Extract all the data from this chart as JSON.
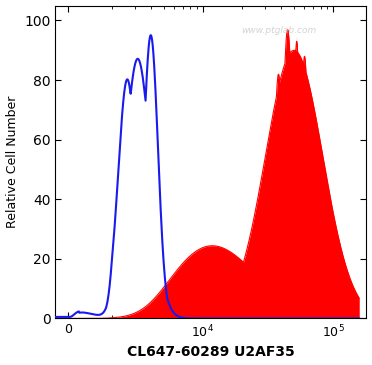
{
  "xlabel": "CL647-60289 U2AF35",
  "ylabel": "Relative Cell Number",
  "watermark": "www.ptglab.com",
  "ylim": [
    0,
    105
  ],
  "yticks": [
    0,
    20,
    40,
    60,
    80,
    100
  ],
  "background_color": "#ffffff",
  "blue_color": "#1a1aee",
  "red_color": "#ff0000",
  "blue_peak_log": 3.52,
  "blue_peak_val": 95,
  "red_peak_log": 4.7,
  "red_peak_val": 97,
  "linthresh": 2000,
  "linscale": 0.3
}
